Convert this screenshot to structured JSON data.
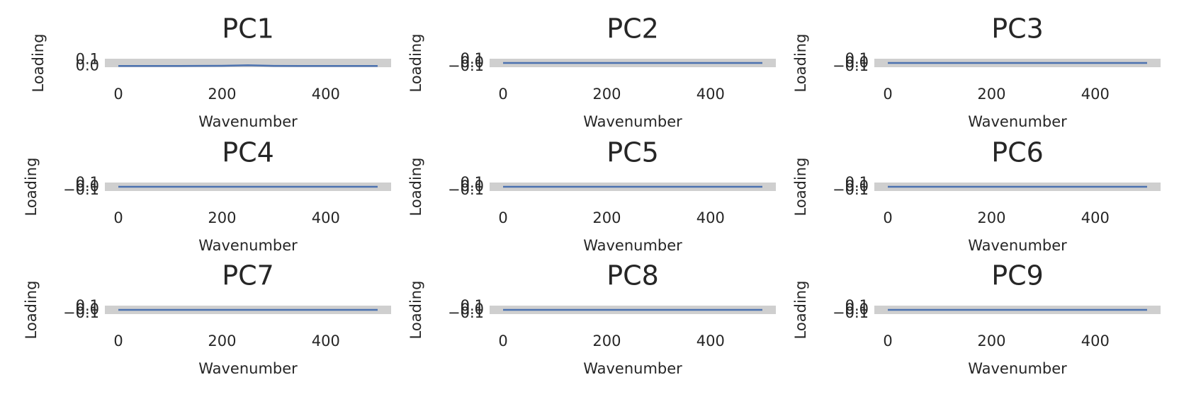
{
  "chart_data": [
    {
      "type": "line",
      "title": "PC1",
      "xlabel": "Wavenumber",
      "ylabel": "Loading",
      "color": "#4c72b0",
      "x": [
        0,
        50,
        100,
        150,
        200,
        250,
        300,
        350,
        400,
        450,
        500
      ],
      "values": [
        0.0,
        0.001,
        0.0,
        0.002,
        0.003,
        0.012,
        0.002,
        0.001,
        0.0,
        0.001,
        0.0
      ],
      "xlim": [
        -26,
        526
      ],
      "ylim": [
        -0.02,
        0.12
      ],
      "xticks": [
        0,
        200,
        400
      ],
      "yticks": [
        {
          "value": 0,
          "label": "0.0"
        },
        0.1
      ]
    },
    {
      "type": "line",
      "title": "PC2",
      "xlabel": "Wavenumber",
      "ylabel": "Loading",
      "color": "#4c72b0",
      "x": [
        0,
        50,
        100,
        150,
        200,
        250,
        300,
        350,
        400,
        450,
        500
      ],
      "values": [
        0.0,
        0.0,
        0.0,
        0.0,
        0.0,
        0.0,
        0.0,
        0.0,
        0.0,
        0.0,
        0.0
      ],
      "xlim": [
        -26,
        526
      ],
      "ylim": [
        -0.12,
        0.12
      ],
      "xticks": [
        0,
        200,
        400
      ],
      "yticks": [
        {
          "value": -0.1,
          "label": "−0.1"
        },
        {
          "value": 0,
          "label": "0.0"
        },
        0.1
      ]
    },
    {
      "type": "line",
      "title": "PC3",
      "xlabel": "Wavenumber",
      "ylabel": "Loading",
      "color": "#4c72b0",
      "x": [
        0,
        50,
        100,
        150,
        200,
        250,
        300,
        350,
        400,
        450,
        500
      ],
      "values": [
        0.0,
        0.0,
        0.0,
        0.0,
        0.0,
        0.0,
        0.0,
        0.0,
        0.0,
        0.0,
        0.0
      ],
      "xlim": [
        -26,
        526
      ],
      "ylim": [
        -0.12,
        0.12
      ],
      "xticks": [
        0,
        200,
        400
      ],
      "yticks": [
        {
          "value": -0.1,
          "label": "−0.1"
        },
        {
          "value": 0,
          "label": "0.0"
        },
        0.1
      ]
    },
    {
      "type": "line",
      "title": "PC4",
      "xlabel": "Wavenumber",
      "ylabel": "Loading",
      "color": "#4c72b0",
      "x": [
        0,
        50,
        100,
        150,
        200,
        250,
        300,
        350,
        400,
        450,
        500
      ],
      "values": [
        0.0,
        0.0,
        0.0,
        0.0,
        0.0,
        0.0,
        0.0,
        0.0,
        0.0,
        0.0,
        0.0
      ],
      "xlim": [
        -26,
        526
      ],
      "ylim": [
        -0.12,
        0.12
      ],
      "xticks": [
        0,
        200,
        400
      ],
      "yticks": [
        {
          "value": -0.1,
          "label": "−0.1"
        },
        {
          "value": 0,
          "label": "0.0"
        },
        0.1
      ]
    },
    {
      "type": "line",
      "title": "PC5",
      "xlabel": "Wavenumber",
      "ylabel": "Loading",
      "color": "#4c72b0",
      "x": [
        0,
        50,
        100,
        150,
        200,
        250,
        300,
        350,
        400,
        450,
        500
      ],
      "values": [
        0.0,
        0.0,
        0.0,
        0.0,
        0.0,
        0.0,
        0.0,
        0.0,
        0.0,
        0.0,
        0.0
      ],
      "xlim": [
        -26,
        526
      ],
      "ylim": [
        -0.12,
        0.12
      ],
      "xticks": [
        0,
        200,
        400
      ],
      "yticks": [
        {
          "value": -0.1,
          "label": "−0.1"
        },
        {
          "value": 0,
          "label": "0.0"
        },
        0.1
      ]
    },
    {
      "type": "line",
      "title": "PC6",
      "xlabel": "Wavenumber",
      "ylabel": "Loading",
      "color": "#4c72b0",
      "x": [
        0,
        50,
        100,
        150,
        200,
        250,
        300,
        350,
        400,
        450,
        500
      ],
      "values": [
        0.0,
        0.0,
        0.0,
        0.0,
        0.0,
        0.0,
        0.0,
        0.0,
        0.0,
        0.0,
        0.0
      ],
      "xlim": [
        -26,
        526
      ],
      "ylim": [
        -0.12,
        0.12
      ],
      "xticks": [
        0,
        200,
        400
      ],
      "yticks": [
        {
          "value": -0.1,
          "label": "−0.1"
        },
        {
          "value": 0,
          "label": "0.0"
        },
        0.1
      ]
    },
    {
      "type": "line",
      "title": "PC7",
      "xlabel": "Wavenumber",
      "ylabel": "Loading",
      "color": "#4c72b0",
      "x": [
        0,
        50,
        100,
        150,
        200,
        250,
        300,
        350,
        400,
        450,
        500
      ],
      "values": [
        0.0,
        0.0,
        0.0,
        0.0,
        0.0,
        0.0,
        0.0,
        0.0,
        0.0,
        0.0,
        0.0
      ],
      "xlim": [
        -26,
        526
      ],
      "ylim": [
        -0.12,
        0.12
      ],
      "xticks": [
        0,
        200,
        400
      ],
      "yticks": [
        {
          "value": -0.1,
          "label": "−0.1"
        },
        {
          "value": 0,
          "label": "0.0"
        },
        0.1
      ]
    },
    {
      "type": "line",
      "title": "PC8",
      "xlabel": "Wavenumber",
      "ylabel": "Loading",
      "color": "#4c72b0",
      "x": [
        0,
        50,
        100,
        150,
        200,
        250,
        300,
        350,
        400,
        450,
        500
      ],
      "values": [
        0.0,
        0.0,
        0.0,
        0.0,
        0.0,
        0.0,
        0.0,
        0.0,
        0.0,
        0.0,
        0.0
      ],
      "xlim": [
        -26,
        526
      ],
      "ylim": [
        -0.12,
        0.12
      ],
      "xticks": [
        0,
        200,
        400
      ],
      "yticks": [
        {
          "value": -0.1,
          "label": "−0.1"
        },
        {
          "value": 0,
          "label": "0.0"
        },
        0.1
      ]
    },
    {
      "type": "line",
      "title": "PC9",
      "xlabel": "Wavenumber",
      "ylabel": "Loading",
      "color": "#4c72b0",
      "x": [
        0,
        50,
        100,
        150,
        200,
        250,
        300,
        350,
        400,
        450,
        500
      ],
      "values": [
        0.0,
        0.0,
        0.0,
        0.0,
        0.0,
        0.0,
        0.0,
        0.0,
        0.0,
        0.0,
        0.0
      ],
      "xlim": [
        -26,
        526
      ],
      "ylim": [
        -0.12,
        0.12
      ],
      "xticks": [
        0,
        200,
        400
      ],
      "yticks": [
        {
          "value": -0.1,
          "label": "−0.1"
        },
        {
          "value": 0,
          "label": "0.0"
        },
        0.1
      ]
    }
  ]
}
